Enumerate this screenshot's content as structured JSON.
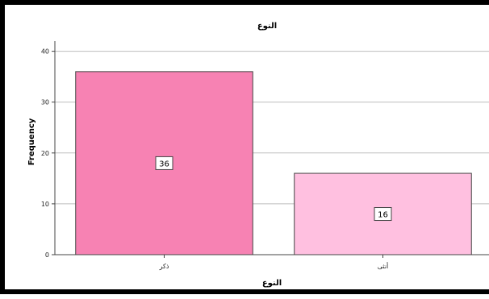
{
  "chart_data": {
    "type": "bar",
    "title": "النوع",
    "xlabel": "النوع",
    "ylabel": "Frequency",
    "categories": [
      "ذكر",
      "أنثى"
    ],
    "values": [
      36,
      16
    ],
    "data_labels": [
      "36",
      "16"
    ],
    "colors": [
      "#f782b3",
      "#ffc0e0"
    ],
    "ylim": [
      0,
      42
    ],
    "yticks": [
      0,
      10,
      20,
      30,
      40
    ],
    "grid": true
  }
}
